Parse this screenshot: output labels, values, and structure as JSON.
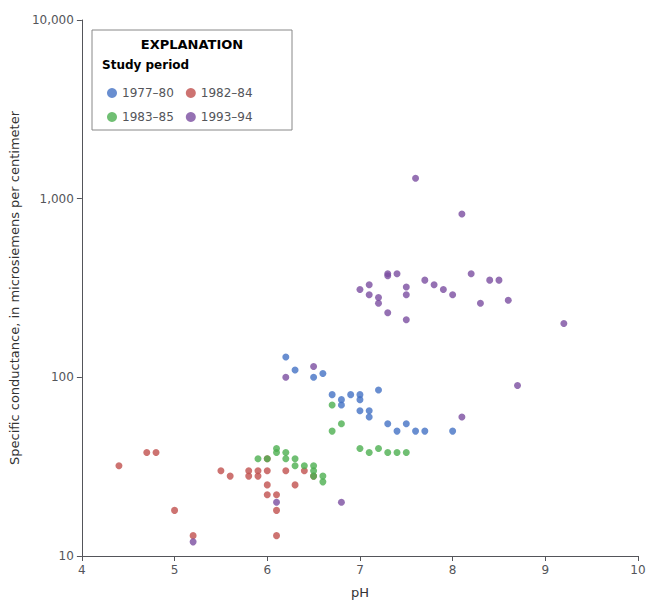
{
  "chart_data": {
    "type": "scatter",
    "xlabel": "pH",
    "ylabel": "Specific conductance, in microsiemens per centimeter",
    "annotations": [
      "EXPLANATION",
      "Study period"
    ],
    "xlim": [
      4,
      10
    ],
    "xticks": [
      4,
      5,
      6,
      7,
      8,
      9,
      10
    ],
    "ylim": [
      10,
      10000
    ],
    "yticks": [
      10,
      100,
      {
        "value": 1000,
        "label": "1,000"
      },
      {
        "value": 10000,
        "label": "10,000"
      }
    ],
    "log": "y",
    "grid": false,
    "legend": "upper left",
    "series": [
      {
        "name": "1977–80",
        "color": "#4472C4",
        "x": [
          6.2,
          6.3,
          6.5,
          6.6,
          6.7,
          6.8,
          6.8,
          6.9,
          7.0,
          7.0,
          7.0,
          7.1,
          7.1,
          7.2,
          7.3,
          7.4,
          7.5,
          7.6,
          7.7,
          8.0
        ],
        "values": [
          130,
          110,
          100,
          105,
          80,
          75,
          70,
          80,
          80,
          75,
          65,
          65,
          60,
          85,
          55,
          50,
          55,
          50,
          50,
          50
        ]
      },
      {
        "name": "1982–84",
        "color": "#C0504D",
        "x": [
          4.4,
          4.7,
          4.8,
          5.0,
          5.2,
          5.5,
          5.6,
          5.8,
          5.8,
          5.9,
          5.9,
          6.0,
          6.0,
          6.0,
          6.0,
          6.1,
          6.1,
          6.1,
          6.2,
          6.3,
          6.4,
          6.5
        ],
        "values": [
          32,
          38,
          38,
          18,
          13,
          30,
          28,
          30,
          28,
          30,
          28,
          35,
          30,
          25,
          22,
          22,
          18,
          13,
          30,
          25,
          30,
          28
        ]
      },
      {
        "name": "1983–85",
        "color": "#4CAF50",
        "x": [
          5.9,
          6.0,
          6.1,
          6.1,
          6.2,
          6.2,
          6.3,
          6.3,
          6.4,
          6.5,
          6.5,
          6.5,
          6.6,
          6.6,
          6.7,
          6.7,
          6.8,
          7.0,
          7.1,
          7.2,
          7.3,
          7.4,
          7.5
        ],
        "values": [
          35,
          35,
          40,
          38,
          38,
          35,
          35,
          32,
          32,
          32,
          30,
          28,
          28,
          26,
          70,
          50,
          55,
          40,
          38,
          40,
          38,
          38,
          38
        ]
      },
      {
        "name": "1993–94",
        "color": "#7B4EA0",
        "x": [
          5.2,
          6.1,
          6.2,
          6.5,
          6.8,
          7.0,
          7.1,
          7.1,
          7.2,
          7.2,
          7.3,
          7.3,
          7.3,
          7.4,
          7.5,
          7.5,
          7.5,
          7.6,
          7.7,
          7.8,
          7.9,
          8.0,
          8.1,
          8.1,
          8.2,
          8.3,
          8.4,
          8.5,
          8.6,
          8.7,
          9.2
        ],
        "values": [
          12,
          20,
          100,
          115,
          20,
          310,
          330,
          290,
          280,
          260,
          380,
          370,
          230,
          380,
          320,
          290,
          210,
          1300,
          350,
          330,
          310,
          290,
          820,
          60,
          380,
          260,
          350,
          350,
          270,
          90,
          200
        ]
      }
    ]
  }
}
